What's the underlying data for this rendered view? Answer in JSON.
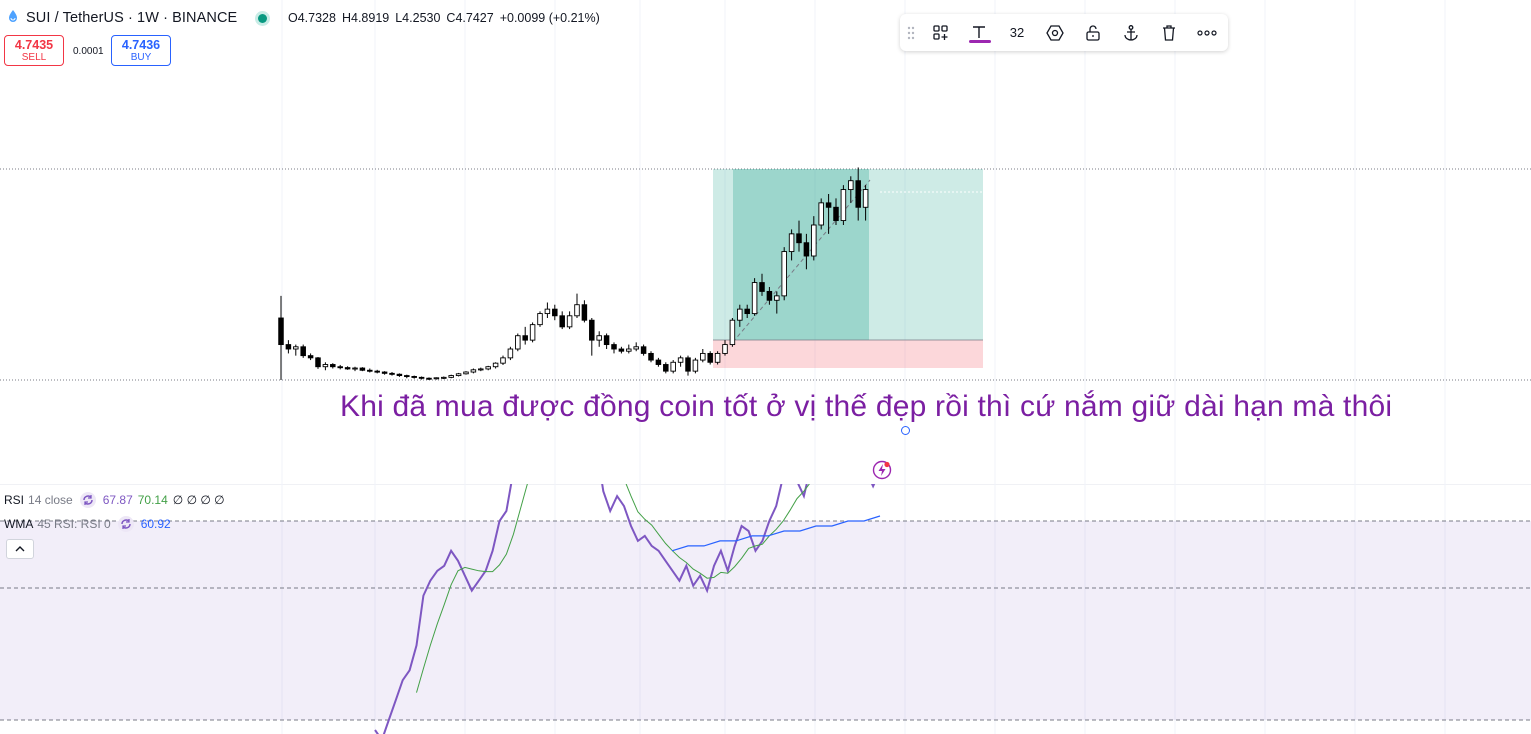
{
  "header": {
    "symbol_title": "SUI / TetherUS · 1W · BINANCE",
    "ohlc": {
      "open": "O4.7328",
      "high": "H4.8919",
      "low": "L4.2530",
      "close": "C4.7427",
      "change": "+0.0099 (+0.21%)"
    },
    "market_status_color": "#089981"
  },
  "trade": {
    "sell_price": "4.7435",
    "sell_label": "SELL",
    "spread": "0.0001",
    "buy_price": "4.7436",
    "buy_label": "BUY"
  },
  "toolbar": {
    "items": [
      "grip-icon",
      "template-icon",
      "text-color-icon",
      "font-size",
      "settings-icon",
      "unlock-icon",
      "anchor-icon",
      "trash-icon",
      "more-icon"
    ],
    "font_size": "32",
    "accent": "#9c27b0"
  },
  "annotation": {
    "text": "Khi đã mua được đồng coin tốt ở vị thế đẹp rồi thì cứ nắm giữ dài hạn mà thôi",
    "color": "#7b1fa2"
  },
  "indicators": {
    "rsi": {
      "name": "RSI",
      "params": "14 close",
      "value1": "67.87",
      "value2": "70.14",
      "extras": "∅ ∅ ∅ ∅",
      "value1_color": "#7e57c2",
      "value2_color": "#43a047"
    },
    "wma": {
      "name": "WMA",
      "params": "45 RSI: RSI 0",
      "value": "60.92",
      "value_color": "#2962ff"
    }
  },
  "chart_data": [
    {
      "type": "candlestick",
      "symbol": "SUI / TetherUS",
      "interval": "1W",
      "exchange": "BINANCE",
      "y_range_approx": [
        0.4,
        5.3
      ],
      "candles_ohlc": [
        [
          1.8,
          2.3,
          0.4,
          1.2
        ],
        [
          1.2,
          1.3,
          1.0,
          1.1
        ],
        [
          1.1,
          1.2,
          0.95,
          1.15
        ],
        [
          1.15,
          1.2,
          0.9,
          0.95
        ],
        [
          0.95,
          1.0,
          0.85,
          0.9
        ],
        [
          0.9,
          0.92,
          0.65,
          0.7
        ],
        [
          0.7,
          0.8,
          0.62,
          0.75
        ],
        [
          0.75,
          0.78,
          0.66,
          0.7
        ],
        [
          0.7,
          0.74,
          0.64,
          0.68
        ],
        [
          0.68,
          0.71,
          0.63,
          0.65
        ],
        [
          0.65,
          0.7,
          0.6,
          0.67
        ],
        [
          0.67,
          0.69,
          0.6,
          0.62
        ],
        [
          0.62,
          0.66,
          0.57,
          0.6
        ],
        [
          0.6,
          0.63,
          0.55,
          0.58
        ],
        [
          0.58,
          0.6,
          0.52,
          0.55
        ],
        [
          0.55,
          0.58,
          0.5,
          0.53
        ],
        [
          0.53,
          0.55,
          0.47,
          0.5
        ],
        [
          0.5,
          0.52,
          0.44,
          0.48
        ],
        [
          0.48,
          0.5,
          0.43,
          0.46
        ],
        [
          0.46,
          0.48,
          0.41,
          0.44
        ],
        [
          0.44,
          0.46,
          0.4,
          0.43
        ],
        [
          0.43,
          0.46,
          0.41,
          0.45
        ],
        [
          0.45,
          0.48,
          0.42,
          0.46
        ],
        [
          0.46,
          0.52,
          0.44,
          0.5
        ],
        [
          0.5,
          0.56,
          0.48,
          0.54
        ],
        [
          0.54,
          0.6,
          0.52,
          0.58
        ],
        [
          0.58,
          0.66,
          0.55,
          0.63
        ],
        [
          0.63,
          0.68,
          0.6,
          0.65
        ],
        [
          0.65,
          0.72,
          0.62,
          0.7
        ],
        [
          0.7,
          0.8,
          0.66,
          0.78
        ],
        [
          0.78,
          0.95,
          0.74,
          0.9
        ],
        [
          0.9,
          1.15,
          0.85,
          1.1
        ],
        [
          1.1,
          1.45,
          1.05,
          1.4
        ],
        [
          1.4,
          1.6,
          1.2,
          1.3
        ],
        [
          1.3,
          1.7,
          1.25,
          1.65
        ],
        [
          1.65,
          1.95,
          1.6,
          1.9
        ],
        [
          1.9,
          2.15,
          1.8,
          2.0
        ],
        [
          2.0,
          2.1,
          1.75,
          1.85
        ],
        [
          1.85,
          1.95,
          1.55,
          1.6
        ],
        [
          1.6,
          1.95,
          1.55,
          1.85
        ],
        [
          1.85,
          2.35,
          1.8,
          2.1
        ],
        [
          2.1,
          2.2,
          1.7,
          1.75
        ],
        [
          1.75,
          1.8,
          0.95,
          1.3
        ],
        [
          1.3,
          1.5,
          1.15,
          1.4
        ],
        [
          1.4,
          1.45,
          1.1,
          1.2
        ],
        [
          1.2,
          1.25,
          1.0,
          1.1
        ],
        [
          1.1,
          1.15,
          1.0,
          1.05
        ],
        [
          1.05,
          1.2,
          1.0,
          1.1
        ],
        [
          1.1,
          1.25,
          1.05,
          1.15
        ],
        [
          1.15,
          1.2,
          0.95,
          1.0
        ],
        [
          1.0,
          1.05,
          0.8,
          0.85
        ],
        [
          0.85,
          0.9,
          0.7,
          0.75
        ],
        [
          0.75,
          0.8,
          0.55,
          0.6
        ],
        [
          0.6,
          0.85,
          0.55,
          0.8
        ],
        [
          0.8,
          0.95,
          0.7,
          0.9
        ],
        [
          0.9,
          0.95,
          0.5,
          0.6
        ],
        [
          0.6,
          0.9,
          0.55,
          0.85
        ],
        [
          0.85,
          1.1,
          0.8,
          1.0
        ],
        [
          1.0,
          1.05,
          0.75,
          0.8
        ],
        [
          0.8,
          1.05,
          0.75,
          1.0
        ],
        [
          1.0,
          1.3,
          0.95,
          1.2
        ],
        [
          1.2,
          1.8,
          1.15,
          1.75
        ],
        [
          1.75,
          2.1,
          1.6,
          2.0
        ],
        [
          2.0,
          2.1,
          1.8,
          1.9
        ],
        [
          1.9,
          2.7,
          1.85,
          2.6
        ],
        [
          2.6,
          2.8,
          2.3,
          2.4
        ],
        [
          2.4,
          2.5,
          2.1,
          2.2
        ],
        [
          2.2,
          2.4,
          1.9,
          2.3
        ],
        [
          2.3,
          3.4,
          2.2,
          3.3
        ],
        [
          3.3,
          3.8,
          3.1,
          3.7
        ],
        [
          3.7,
          4.0,
          3.3,
          3.5
        ],
        [
          3.5,
          3.7,
          2.9,
          3.2
        ],
        [
          3.2,
          4.1,
          3.1,
          3.9
        ],
        [
          3.9,
          4.5,
          3.8,
          4.4
        ],
        [
          4.4,
          4.6,
          3.7,
          4.3
        ],
        [
          4.3,
          4.5,
          3.9,
          4.0
        ],
        [
          4.0,
          4.8,
          3.9,
          4.7
        ],
        [
          4.7,
          5.0,
          4.4,
          4.9
        ],
        [
          4.9,
          5.2,
          4.0,
          4.3
        ],
        [
          4.3,
          4.8,
          4.0,
          4.7
        ]
      ],
      "position_tool": {
        "entry_price_approx": 0.95,
        "target_price_approx": 5.0,
        "stop_price_approx": 0.55
      }
    },
    {
      "type": "line",
      "series": [
        {
          "name": "RSI",
          "values": [
            28,
            26,
            30,
            34,
            38,
            40,
            45,
            55,
            58,
            60,
            61,
            64,
            62,
            59,
            56,
            58,
            60,
            64,
            70,
            72,
            80,
            88,
            90,
            86,
            88,
            92,
            93,
            90,
            87,
            89,
            91,
            90,
            85,
            76,
            72,
            75,
            73,
            69,
            66,
            67,
            65,
            64,
            62,
            60,
            58,
            61,
            57,
            59,
            56,
            61,
            64,
            60,
            65,
            69,
            68,
            64,
            66,
            70,
            73,
            79,
            81,
            78,
            75,
            81,
            82,
            79,
            80,
            83,
            82,
            81,
            78,
            80,
            77,
            80
          ],
          "color": "#7e57c2"
        },
        {
          "name": "WMA",
          "values": [
            64,
            65,
            65,
            66,
            66,
            67,
            67,
            68,
            68,
            69,
            69,
            70,
            70,
            71
          ],
          "color": "#2962ff"
        }
      ],
      "levels": [
        70,
        50,
        30
      ]
    }
  ]
}
